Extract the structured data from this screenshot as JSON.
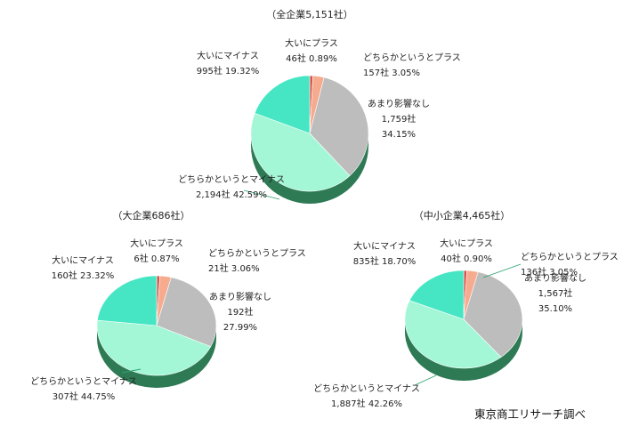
{
  "source": "東京商工リサーチ調べ",
  "colors": {
    "大いにプラス": "#d9534b",
    "どちらかというとプラス": "#f6ab8e",
    "あまり影響なし": "#bdbdbd",
    "どちらかというとマイナス": "#a3f7d6",
    "大いにマイナス": "#46e6c4",
    "leader": "#2da36f",
    "rim": "#2e7a55"
  },
  "chart_data": [
    {
      "type": "pie",
      "title": "（全企業5,151社）",
      "categories": [
        "大いにプラス",
        "どちらかというとプラス",
        "あまり影響なし",
        "どちらかというとマイナス",
        "大いにマイナス"
      ],
      "values": [
        46,
        157,
        1759,
        2194,
        995
      ],
      "percent": [
        0.89,
        3.05,
        34.15,
        42.59,
        19.32
      ],
      "labels": [
        [
          "大いにプラス",
          "46社 0.89%"
        ],
        [
          "どちらかというとプラス",
          "157社 3.05%"
        ],
        [
          "あまり影響なし",
          "1,759社",
          "34.15%"
        ],
        [
          "どちらかというとマイナス",
          "2,194社 42.59%"
        ],
        [
          "大いにマイナス",
          "995社 19.32%"
        ]
      ]
    },
    {
      "type": "pie",
      "title": "（大企業686社）",
      "categories": [
        "大いにプラス",
        "どちらかというとプラス",
        "あまり影響なし",
        "どちらかというとマイナス",
        "大いにマイナス"
      ],
      "values": [
        6,
        21,
        192,
        307,
        160
      ],
      "percent": [
        0.87,
        3.06,
        27.99,
        44.75,
        23.32
      ],
      "labels": [
        [
          "大いにプラス",
          "6社 0.87%"
        ],
        [
          "どちらかというとプラス",
          "21社 3.06%"
        ],
        [
          "あまり影響なし",
          "192社",
          "27.99%"
        ],
        [
          "どちらかというとマイナス",
          "307社 44.75%"
        ],
        [
          "大いにマイナス",
          "160社 23.32%"
        ]
      ]
    },
    {
      "type": "pie",
      "title": "（中小企業4,465社）",
      "categories": [
        "大いにプラス",
        "どちらかというとプラス",
        "あまり影響なし",
        "どちらかというとマイナス",
        "大いにマイナス"
      ],
      "values": [
        40,
        136,
        1567,
        1887,
        835
      ],
      "percent": [
        0.9,
        3.05,
        35.1,
        42.26,
        18.7
      ],
      "labels": [
        [
          "大いにプラス",
          "40社 0.90%"
        ],
        [
          "どちらかというとプラス",
          "136社 3.05%"
        ],
        [
          "あまり影響なし",
          "1,567社",
          "35.10%"
        ],
        [
          "どちらかというとマイナス",
          "1,887社 42.26%"
        ],
        [
          "大いにマイナス",
          "835社 18.70%"
        ]
      ]
    }
  ]
}
